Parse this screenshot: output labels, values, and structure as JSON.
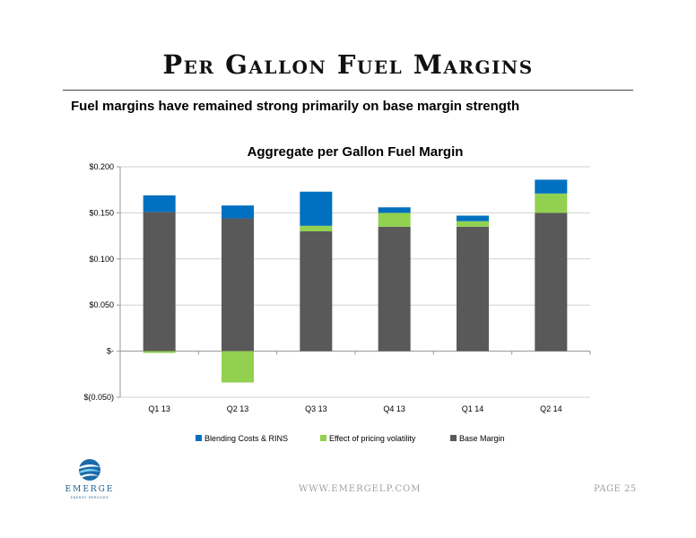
{
  "slide": {
    "title": "Per Gallon Fuel Margins",
    "subtitle": "Fuel margins have remained strong primarily on base margin strength",
    "footer_url": "WWW.EMERGELP.COM",
    "footer_page": "PAGE 25",
    "logo_text": "EMERGE",
    "logo_subtext": "ENERGY SERVICES"
  },
  "colors": {
    "base_margin": "#595959",
    "pricing_volatility": "#92d050",
    "blending_costs": "#0070c0",
    "grid": "#d0d0d0",
    "axis": "#999999"
  },
  "chart_data": {
    "type": "bar",
    "stacked": true,
    "title": "Aggregate per Gallon Fuel Margin",
    "categories": [
      "Q1 13",
      "Q2 13",
      "Q3 13",
      "Q4 13",
      "Q1 14",
      "Q2 14"
    ],
    "series": [
      {
        "name": "Base Margin",
        "color": "#595959",
        "values": [
          0.151,
          0.144,
          0.13,
          0.135,
          0.135,
          0.15
        ]
      },
      {
        "name": "Effect of pricing volatility",
        "color": "#92d050",
        "values": [
          -0.002,
          -0.034,
          0.006,
          0.015,
          0.006,
          0.021
        ]
      },
      {
        "name": "Blending Costs & RINS",
        "color": "#0070c0",
        "values": [
          0.018,
          0.014,
          0.037,
          0.006,
          0.006,
          0.015
        ]
      }
    ],
    "yticks": [
      -0.05,
      0,
      0.05,
      0.1,
      0.15,
      0.2
    ],
    "ytick_labels": [
      "$(0.050)",
      "$-",
      "$0.050",
      "$0.100",
      "$0.150",
      "$0.200"
    ],
    "ylim": [
      -0.05,
      0.2
    ],
    "legend": [
      {
        "name": "Blending Costs & RINS",
        "color": "#0070c0"
      },
      {
        "name": "Effect of pricing volatility",
        "color": "#92d050"
      },
      {
        "name": "Base Margin",
        "color": "#595959"
      }
    ],
    "legend_position": "bottom",
    "grid": true
  }
}
